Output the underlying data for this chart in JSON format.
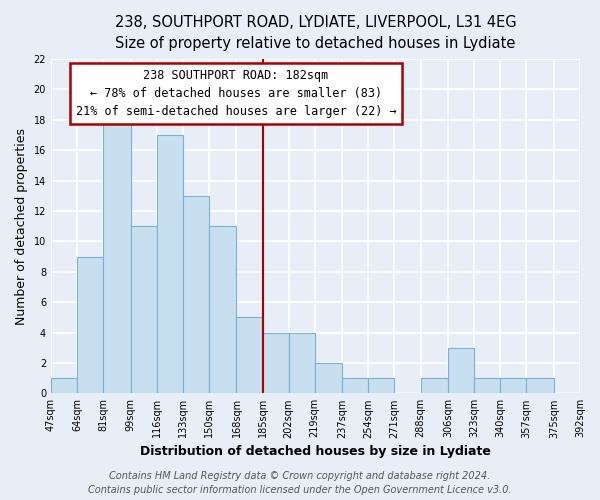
{
  "title1": "238, SOUTHPORT ROAD, LYDIATE, LIVERPOOL, L31 4EG",
  "title2": "Size of property relative to detached houses in Lydiate",
  "xlabel": "Distribution of detached houses by size in Lydiate",
  "ylabel": "Number of detached properties",
  "bar_edges": [
    47,
    64,
    81,
    99,
    116,
    133,
    150,
    168,
    185,
    202,
    219,
    237,
    254,
    271,
    288,
    306,
    323,
    340,
    357,
    375,
    392
  ],
  "bar_heights": [
    1,
    9,
    18,
    11,
    17,
    13,
    11,
    5,
    4,
    4,
    2,
    1,
    1,
    0,
    1,
    3,
    1,
    1,
    1,
    0
  ],
  "bar_color": "#c8dff0",
  "bar_edgecolor": "#7bafd4",
  "reference_line_x": 185,
  "reference_line_color": "#aa0000",
  "ylim": [
    0,
    22
  ],
  "xlim": [
    47,
    392
  ],
  "annotation_title": "238 SOUTHPORT ROAD: 182sqm",
  "annotation_line1": "← 78% of detached houses are smaller (83)",
  "annotation_line2": "21% of semi-detached houses are larger (22) →",
  "annotation_box_color": "#ffffff",
  "annotation_box_edgecolor": "#aa0000",
  "tick_labels": [
    "47sqm",
    "64sqm",
    "81sqm",
    "99sqm",
    "116sqm",
    "133sqm",
    "150sqm",
    "168sqm",
    "185sqm",
    "202sqm",
    "219sqm",
    "237sqm",
    "254sqm",
    "271sqm",
    "288sqm",
    "306sqm",
    "323sqm",
    "340sqm",
    "357sqm",
    "375sqm",
    "392sqm"
  ],
  "footer1": "Contains HM Land Registry data © Crown copyright and database right 2024.",
  "footer2": "Contains public sector information licensed under the Open Government Licence v3.0.",
  "background_color": "#e8eef8",
  "plot_bg_color": "#e8eef8",
  "grid_color": "#ffffff",
  "title_fontsize": 10.5,
  "subtitle_fontsize": 9.5,
  "axis_label_fontsize": 9,
  "tick_fontsize": 7,
  "annotation_fontsize": 8.5,
  "footer_fontsize": 7
}
